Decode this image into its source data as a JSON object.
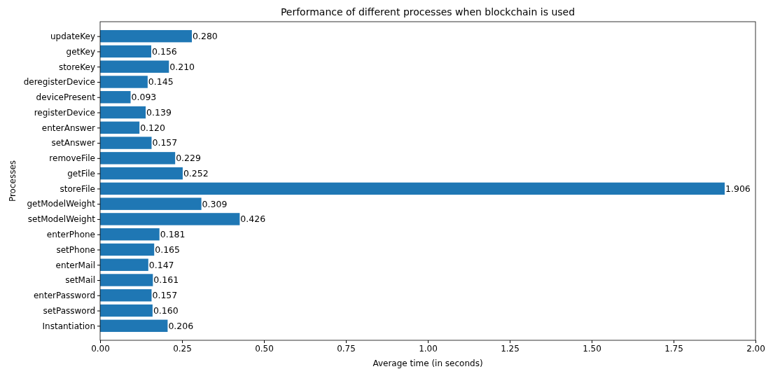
{
  "chart_data": {
    "type": "bar",
    "orientation": "horizontal",
    "title": "Performance of different processes when blockchain is used",
    "xlabel": "Average time (in seconds)",
    "ylabel": "Processes",
    "categories": [
      "updateKey",
      "getKey",
      "storeKey",
      "deregisterDevice",
      "devicePresent",
      "registerDevice",
      "enterAnswer",
      "setAnswer",
      "removeFile",
      "getFile",
      "storeFile",
      "getModelWeight",
      "setModelWeight",
      "enterPhone",
      "setPhone",
      "enterMail",
      "setMail",
      "enterPassword",
      "setPassword",
      "Instantiation"
    ],
    "values": [
      0.28,
      0.156,
      0.21,
      0.145,
      0.093,
      0.139,
      0.12,
      0.157,
      0.229,
      0.252,
      1.906,
      0.309,
      0.426,
      0.181,
      0.165,
      0.147,
      0.161,
      0.157,
      0.16,
      0.206
    ],
    "value_labels": [
      "0.280",
      "0.156",
      "0.210",
      "0.145",
      "0.093",
      "0.139",
      "0.120",
      "0.157",
      "0.229",
      "0.252",
      "1.906",
      "0.309",
      "0.426",
      "0.181",
      "0.165",
      "0.147",
      "0.161",
      "0.157",
      "0.160",
      "0.206"
    ],
    "color": "#1f77b4",
    "xlim": [
      0,
      2
    ],
    "xticks": [
      {
        "value": 0,
        "label": "0.00"
      },
      {
        "value": 0.25,
        "label": "0.25"
      },
      {
        "value": 0.5,
        "label": "0.50"
      },
      {
        "value": 0.75,
        "label": "0.75"
      },
      {
        "value": 1,
        "label": "1.00"
      },
      {
        "value": 1.25,
        "label": "1.25"
      },
      {
        "value": 1.5,
        "label": "1.50"
      },
      {
        "value": 1.75,
        "label": "1.75"
      },
      {
        "value": 2,
        "label": "2.00"
      }
    ],
    "grid": false
  }
}
